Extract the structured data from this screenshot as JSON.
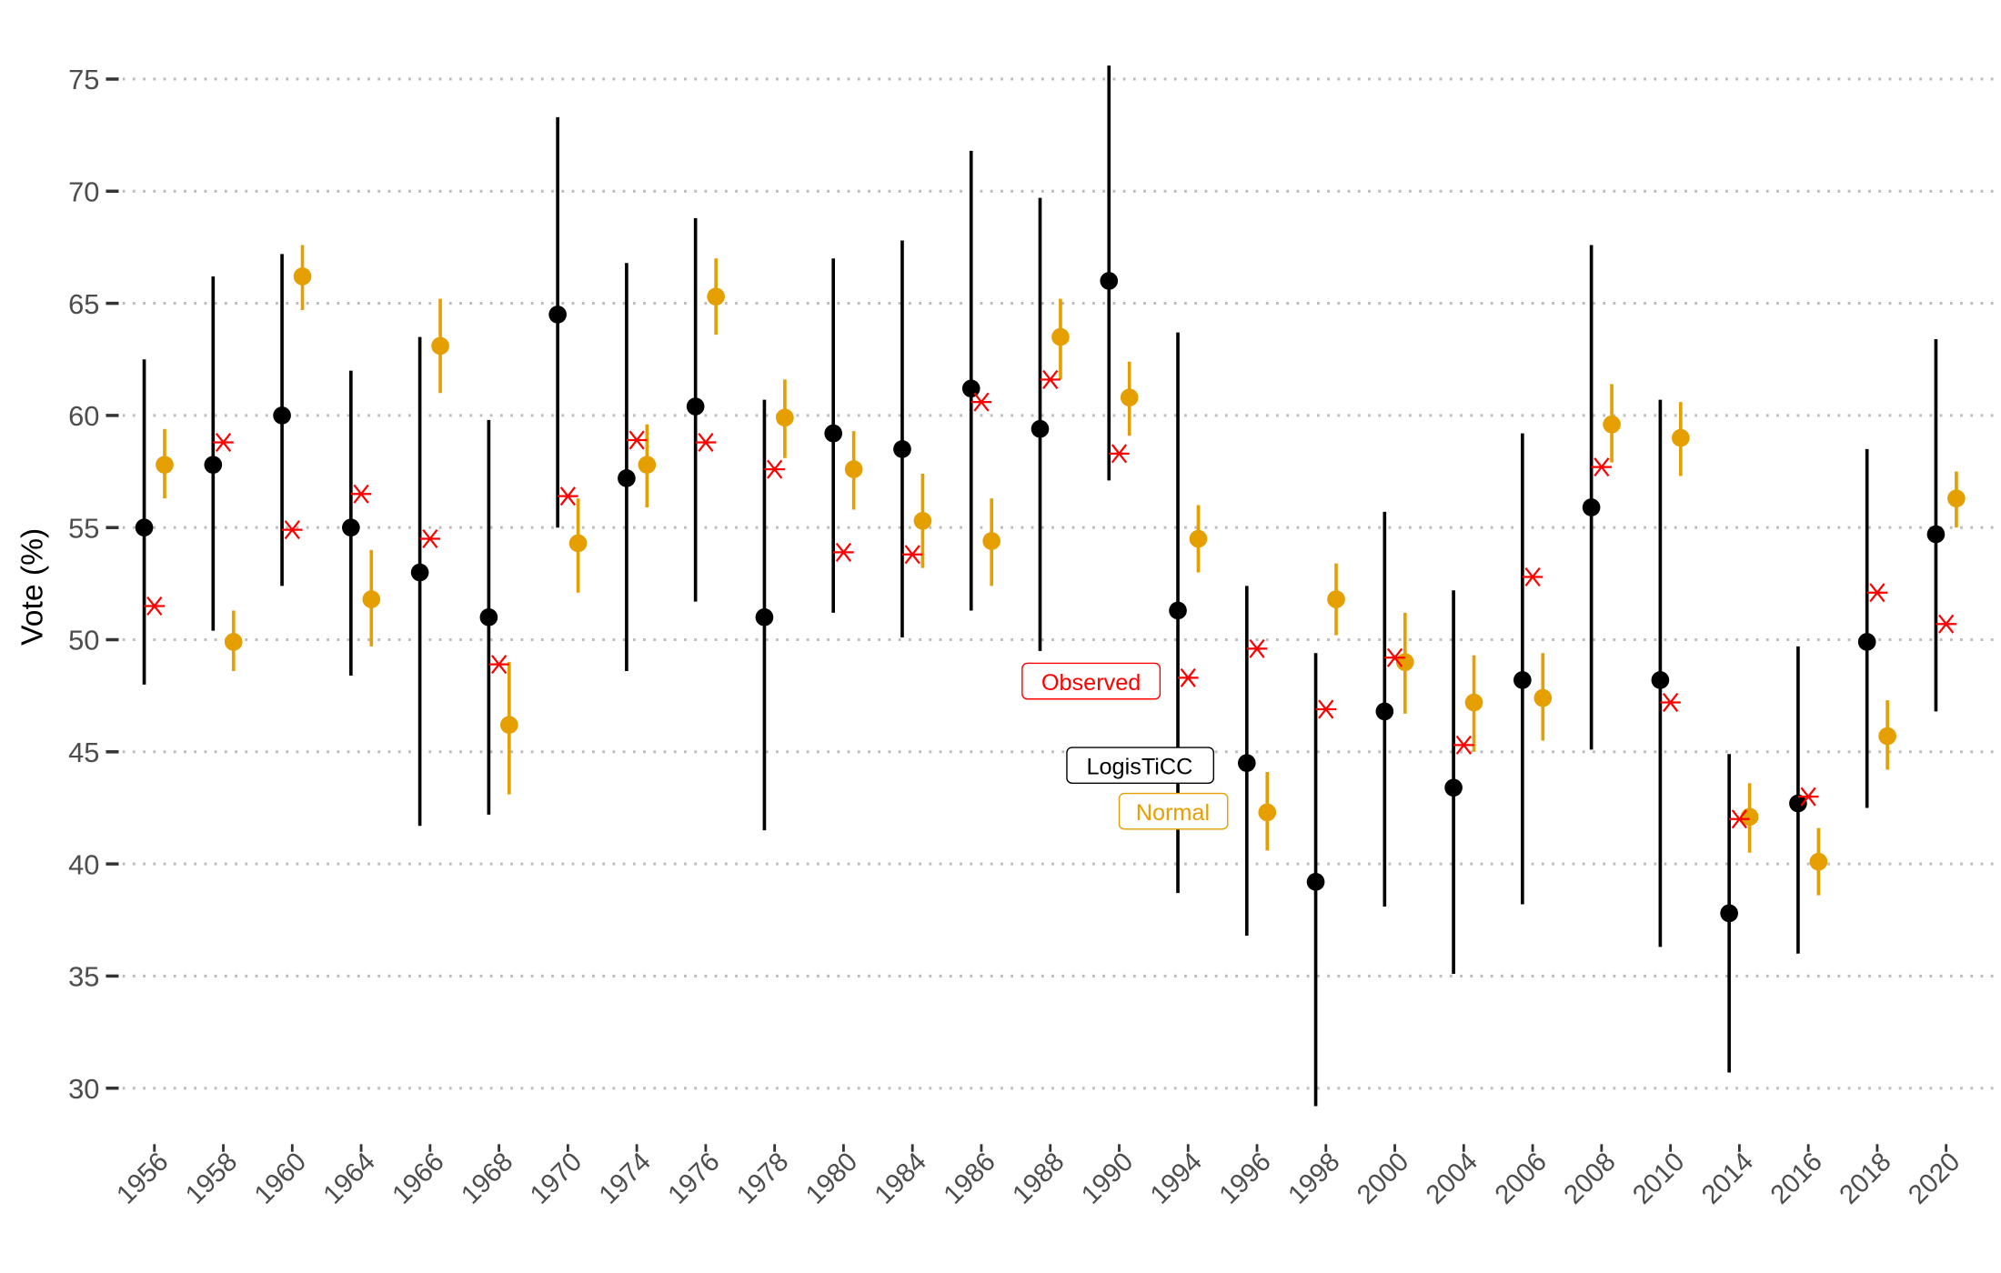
{
  "chart_data": {
    "type": "scatter",
    "ylabel": "Vote (%)",
    "xlabel": "",
    "ylim": [
      28,
      76.5
    ],
    "yticks": [
      30,
      35,
      40,
      45,
      50,
      55,
      60,
      65,
      70,
      75
    ],
    "grid": "horizontal dotted",
    "categories": [
      "1956",
      "1958",
      "1960",
      "1964",
      "1966",
      "1968",
      "1970",
      "1974",
      "1976",
      "1978",
      "1980",
      "1984",
      "1986",
      "1988",
      "1990",
      "1994",
      "1996",
      "1998",
      "2000",
      "2004",
      "2006",
      "2008",
      "2010",
      "2014",
      "2016",
      "2018",
      "2020"
    ],
    "series": [
      {
        "name": "LogisTiCC",
        "color": "#000000",
        "marker": "point with interval",
        "values": [
          55.0,
          57.8,
          60.0,
          55.0,
          53.0,
          51.0,
          64.5,
          57.2,
          60.4,
          51.0,
          59.2,
          58.5,
          61.2,
          59.4,
          66.0,
          51.3,
          44.5,
          39.2,
          46.8,
          43.4,
          48.2,
          55.9,
          48.2,
          37.8,
          42.7,
          49.9,
          54.7
        ],
        "lower": [
          48.0,
          50.4,
          52.4,
          48.4,
          41.7,
          42.2,
          55.0,
          48.6,
          51.7,
          41.5,
          51.2,
          50.1,
          51.3,
          49.5,
          57.1,
          38.7,
          36.8,
          29.2,
          38.1,
          35.1,
          38.2,
          45.1,
          36.3,
          30.7,
          36.0,
          42.5,
          46.8
        ],
        "upper": [
          62.5,
          66.2,
          67.2,
          62.0,
          63.5,
          59.8,
          73.3,
          66.8,
          68.8,
          60.7,
          67.0,
          67.8,
          71.8,
          69.7,
          75.6,
          63.7,
          52.4,
          49.4,
          55.7,
          52.2,
          59.2,
          67.6,
          60.7,
          44.9,
          49.7,
          58.5,
          63.4
        ]
      },
      {
        "name": "Observed",
        "color": "#ff0000",
        "marker": "asterisk",
        "values": [
          51.5,
          58.8,
          54.9,
          56.5,
          54.5,
          48.9,
          56.4,
          58.9,
          58.8,
          57.6,
          53.9,
          53.8,
          60.6,
          61.6,
          58.3,
          48.3,
          49.6,
          46.9,
          49.2,
          45.3,
          52.8,
          57.7,
          47.2,
          42.0,
          43.0,
          52.1,
          50.7
        ]
      },
      {
        "name": "Normal",
        "color": "#e69f00",
        "marker": "point with interval",
        "values": [
          57.8,
          49.9,
          66.2,
          51.8,
          63.1,
          46.2,
          54.3,
          57.8,
          65.3,
          59.9,
          57.6,
          55.3,
          54.4,
          63.5,
          60.8,
          54.5,
          42.3,
          51.8,
          49.0,
          47.2,
          47.4,
          59.6,
          59.0,
          42.1,
          40.1,
          45.7,
          56.3
        ],
        "lower": [
          56.3,
          48.6,
          64.7,
          49.7,
          61.0,
          43.1,
          52.1,
          55.9,
          63.6,
          58.1,
          55.8,
          53.2,
          52.4,
          61.6,
          59.1,
          53.0,
          40.6,
          50.2,
          46.7,
          45.0,
          45.5,
          57.9,
          57.3,
          40.5,
          38.6,
          44.2,
          55.0
        ],
        "upper": [
          59.4,
          51.3,
          67.6,
          54.0,
          65.2,
          49.0,
          56.3,
          59.6,
          67.0,
          61.6,
          59.3,
          57.4,
          56.3,
          65.2,
          62.4,
          56.0,
          44.1,
          53.4,
          51.2,
          49.3,
          49.4,
          61.4,
          60.6,
          43.6,
          41.6,
          47.3,
          57.5
        ]
      }
    ],
    "legend": "inline labels near 1988-1994"
  }
}
